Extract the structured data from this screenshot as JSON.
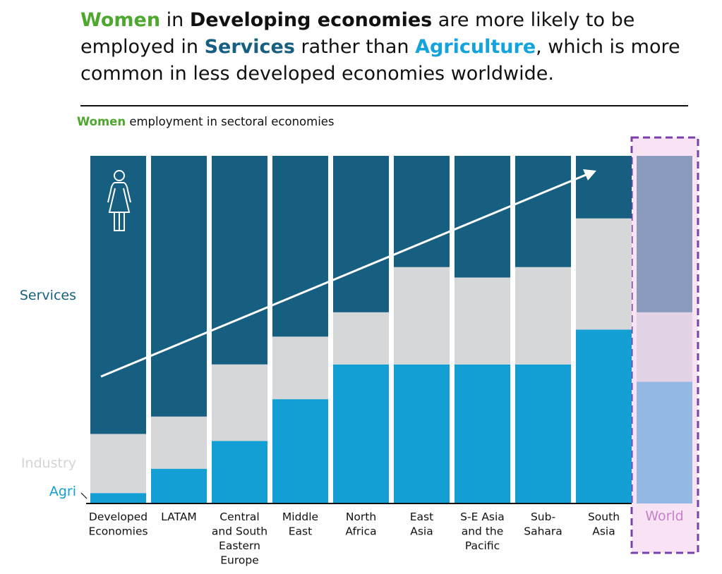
{
  "headline": {
    "p1": "Women",
    "p2": " in ",
    "p3": "Developing economies",
    "p4": " are more likely to be employed in ",
    "p5": "Services",
    "p6": " rather than ",
    "p7": "Agriculture",
    "p8": ", which is more common in less developed economies worldwide."
  },
  "subtitle": {
    "highlight": "Women",
    "rest": " employment in sectoral economies"
  },
  "colors": {
    "women": "#4ea72e",
    "services": "#175f80",
    "industry": "#d6d7d9",
    "agri": "#139fd4",
    "world_services": "#8a9bbd",
    "world_industry": "#e3d3e6",
    "world_agri": "#93b8e3",
    "world_box": "#7a3fa8",
    "world_fill": "#f8e3f5"
  },
  "chart_data": {
    "type": "bar",
    "stacked": true,
    "normalized_percent": true,
    "categories": [
      "Developed Economies",
      "LATAM",
      "Central and South Eastern Europe",
      "Middle East",
      "North Africa",
      "East Asia",
      "S-E Asia and the Pacific",
      "Sub-Sahara",
      "South Asia",
      "World"
    ],
    "series": [
      {
        "name": "Agri",
        "values": [
          3,
          10,
          18,
          30,
          40,
          40,
          40,
          40,
          50,
          35
        ]
      },
      {
        "name": "Industry",
        "values": [
          17,
          15,
          22,
          18,
          15,
          28,
          25,
          28,
          32,
          20
        ]
      },
      {
        "name": "Services",
        "values": [
          80,
          75,
          60,
          52,
          45,
          32,
          35,
          32,
          18,
          45
        ]
      }
    ],
    "ylim": [
      0,
      100
    ],
    "grid": false,
    "highlighted_category": "World",
    "annotation": "upward trend arrow",
    "icon": "woman-icon"
  }
}
